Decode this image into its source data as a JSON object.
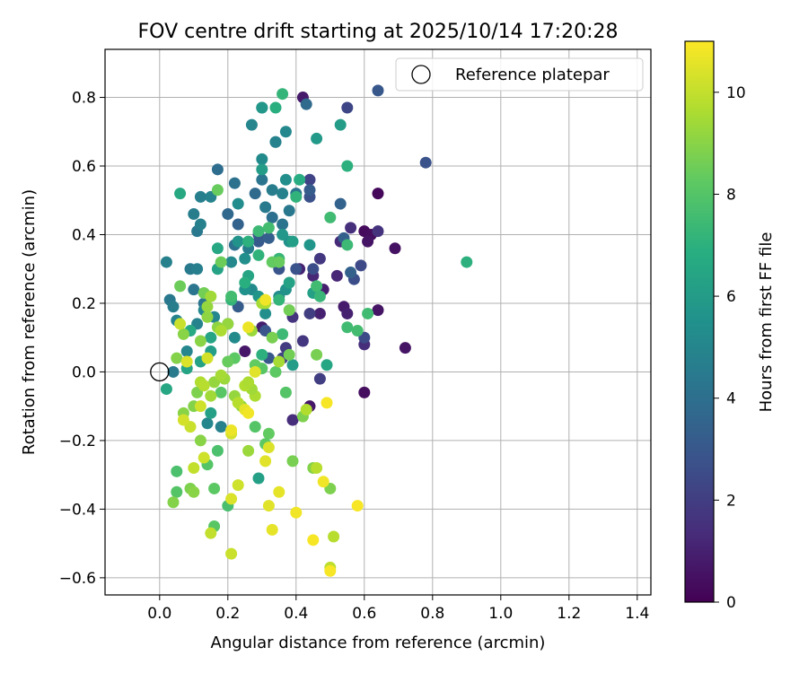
{
  "chart_data": {
    "type": "scatter",
    "title": "FOV centre drift starting at 2025/10/14 17:20:28",
    "xlabel": "Angular distance from reference (arcmin)",
    "ylabel": "Rotation from reference (arcmin)",
    "xlim": [
      -0.16,
      1.44
    ],
    "ylim": [
      -0.65,
      0.94
    ],
    "xticks": [
      0.0,
      0.2,
      0.4,
      0.6,
      0.8,
      1.0,
      1.2,
      1.4
    ],
    "yticks": [
      -0.6,
      -0.4,
      -0.2,
      0.0,
      0.2,
      0.4,
      0.6,
      0.8
    ],
    "xtick_labels": [
      "0.0",
      "0.2",
      "0.4",
      "0.6",
      "0.8",
      "1.0",
      "1.2",
      "1.4"
    ],
    "ytick_labels": [
      "−0.6",
      "−0.4",
      "−0.2",
      "0.0",
      "0.2",
      "0.4",
      "0.6",
      "0.8"
    ],
    "grid": true,
    "legend": {
      "placement": "top-right",
      "entries": [
        "Reference platepar"
      ]
    },
    "reference_point": {
      "x": 0.0,
      "y": 0.0
    },
    "colorbar": {
      "label": "Hours from first FF file",
      "min": 0,
      "max": 11,
      "ticks": [
        0,
        2,
        4,
        6,
        8,
        10
      ],
      "tick_labels": [
        "0",
        "2",
        "4",
        "6",
        "8",
        "10"
      ],
      "colormap": "viridis"
    },
    "points": [
      {
        "x": 0.64,
        "y": 0.52,
        "h": 0.2
      },
      {
        "x": 0.6,
        "y": 0.41,
        "h": 0.3
      },
      {
        "x": 0.62,
        "y": 0.4,
        "h": 0.4
      },
      {
        "x": 0.61,
        "y": 0.38,
        "h": 0.6
      },
      {
        "x": 0.69,
        "y": 0.36,
        "h": 0.5
      },
      {
        "x": 0.72,
        "y": 0.07,
        "h": 0.6
      },
      {
        "x": 0.6,
        "y": -0.06,
        "h": 0.4
      },
      {
        "x": 0.64,
        "y": 0.18,
        "h": 0.6
      },
      {
        "x": 0.54,
        "y": 0.19,
        "h": 0.8
      },
      {
        "x": 0.55,
        "y": 0.17,
        "h": 1.0
      },
      {
        "x": 0.48,
        "y": 0.24,
        "h": 0.9
      },
      {
        "x": 0.42,
        "y": 0.8,
        "h": 0.8
      },
      {
        "x": 0.44,
        "y": -0.1,
        "h": 0.7
      },
      {
        "x": 0.3,
        "y": 0.13,
        "h": 0.9
      },
      {
        "x": 0.25,
        "y": 0.06,
        "h": 0.7
      },
      {
        "x": 0.47,
        "y": 0.17,
        "h": 1.0
      },
      {
        "x": 0.52,
        "y": 0.28,
        "h": 1.2
      },
      {
        "x": 0.53,
        "y": 0.38,
        "h": 1.3
      },
      {
        "x": 0.6,
        "y": 0.08,
        "h": 1.4
      },
      {
        "x": 0.64,
        "y": 0.41,
        "h": 1.6
      },
      {
        "x": 0.56,
        "y": 0.42,
        "h": 1.5
      },
      {
        "x": 0.45,
        "y": 0.28,
        "h": 1.2
      },
      {
        "x": 0.41,
        "y": 0.3,
        "h": 1.1
      },
      {
        "x": 0.47,
        "y": 0.33,
        "h": 1.8
      },
      {
        "x": 0.39,
        "y": -0.14,
        "h": 1.4
      },
      {
        "x": 0.39,
        "y": 0.16,
        "h": 1.6
      },
      {
        "x": 0.44,
        "y": 0.17,
        "h": 2.0
      },
      {
        "x": 0.42,
        "y": 0.09,
        "h": 1.7
      },
      {
        "x": 0.37,
        "y": 0.07,
        "h": 1.9
      },
      {
        "x": 0.36,
        "y": 0.04,
        "h": 2.2
      },
      {
        "x": 0.47,
        "y": -0.02,
        "h": 2.0
      },
      {
        "x": 0.55,
        "y": 0.77,
        "h": 2.3
      },
      {
        "x": 0.78,
        "y": 0.61,
        "h": 2.8
      },
      {
        "x": 0.64,
        "y": 0.82,
        "h": 3.0
      },
      {
        "x": 0.59,
        "y": 0.31,
        "h": 2.4
      },
      {
        "x": 0.57,
        "y": 0.27,
        "h": 2.6
      },
      {
        "x": 0.6,
        "y": 0.1,
        "h": 2.5
      },
      {
        "x": 0.44,
        "y": 0.56,
        "h": 2.2
      },
      {
        "x": 0.44,
        "y": 0.51,
        "h": 2.7
      },
      {
        "x": 0.45,
        "y": 0.3,
        "h": 2.6
      },
      {
        "x": 0.32,
        "y": 0.04,
        "h": 3.0
      },
      {
        "x": 0.31,
        "y": 0.12,
        "h": 2.9
      },
      {
        "x": 0.29,
        "y": 0.4,
        "h": 2.8
      },
      {
        "x": 0.29,
        "y": 0.38,
        "h": 3.1
      },
      {
        "x": 0.23,
        "y": 0.19,
        "h": 3.2
      },
      {
        "x": 0.4,
        "y": 0.3,
        "h": 2.8
      },
      {
        "x": 0.35,
        "y": 0.3,
        "h": 2.9
      },
      {
        "x": 0.32,
        "y": 0.39,
        "h": 3.3
      },
      {
        "x": 0.56,
        "y": 0.29,
        "h": 3.4
      },
      {
        "x": 0.53,
        "y": 0.49,
        "h": 3.5
      },
      {
        "x": 0.54,
        "y": 0.39,
        "h": 3.4
      },
      {
        "x": 0.43,
        "y": 0.78,
        "h": 3.8
      },
      {
        "x": 0.34,
        "y": 0.67,
        "h": 3.6
      },
      {
        "x": 0.44,
        "y": 0.53,
        "h": 3.2
      },
      {
        "x": 0.23,
        "y": 0.43,
        "h": 3.5
      },
      {
        "x": 0.2,
        "y": 0.46,
        "h": 3.7
      },
      {
        "x": 0.17,
        "y": 0.59,
        "h": 3.9
      },
      {
        "x": 0.22,
        "y": 0.55,
        "h": 4.1
      },
      {
        "x": 0.28,
        "y": 0.52,
        "h": 3.8
      },
      {
        "x": 0.33,
        "y": 0.45,
        "h": 4.0
      },
      {
        "x": 0.36,
        "y": 0.43,
        "h": 4.2
      },
      {
        "x": 0.38,
        "y": 0.47,
        "h": 4.4
      },
      {
        "x": 0.31,
        "y": 0.48,
        "h": 4.5
      },
      {
        "x": 0.3,
        "y": 0.56,
        "h": 4.3
      },
      {
        "x": 0.33,
        "y": 0.53,
        "h": 4.6
      },
      {
        "x": 0.36,
        "y": 0.52,
        "h": 4.8
      },
      {
        "x": 0.4,
        "y": 0.52,
        "h": 4.2
      },
      {
        "x": 0.22,
        "y": 0.37,
        "h": 4.1
      },
      {
        "x": 0.26,
        "y": 0.36,
        "h": 4.6
      },
      {
        "x": 0.15,
        "y": 0.51,
        "h": 4.9
      },
      {
        "x": 0.12,
        "y": 0.51,
        "h": 4.7
      },
      {
        "x": 0.1,
        "y": 0.46,
        "h": 4.6
      },
      {
        "x": 0.11,
        "y": 0.41,
        "h": 4.4
      },
      {
        "x": 0.12,
        "y": 0.43,
        "h": 4.8
      },
      {
        "x": 0.13,
        "y": 0.2,
        "h": 4.2
      },
      {
        "x": 0.1,
        "y": 0.24,
        "h": 4.3
      },
      {
        "x": 0.09,
        "y": 0.3,
        "h": 4.5
      },
      {
        "x": 0.11,
        "y": 0.3,
        "h": 4.7
      },
      {
        "x": 0.03,
        "y": 0.21,
        "h": 4.4
      },
      {
        "x": 0.04,
        "y": 0.19,
        "h": 4.6
      },
      {
        "x": 0.04,
        "y": 0.0,
        "h": 4.5
      },
      {
        "x": 0.02,
        "y": 0.32,
        "h": 4.8
      },
      {
        "x": 0.05,
        "y": 0.15,
        "h": 4.9
      },
      {
        "x": 0.08,
        "y": 0.06,
        "h": 5.0
      },
      {
        "x": 0.11,
        "y": 0.14,
        "h": 4.9
      },
      {
        "x": 0.13,
        "y": 0.18,
        "h": 5.1
      },
      {
        "x": 0.16,
        "y": 0.16,
        "h": 5.0
      },
      {
        "x": 0.18,
        "y": -0.16,
        "h": 4.8
      },
      {
        "x": 0.14,
        "y": -0.15,
        "h": 5.0
      },
      {
        "x": 0.3,
        "y": 0.77,
        "h": 5.0
      },
      {
        "x": 0.34,
        "y": 0.67,
        "h": 4.9
      },
      {
        "x": 0.37,
        "y": 0.7,
        "h": 5.1
      },
      {
        "x": 0.27,
        "y": 0.72,
        "h": 5.0
      },
      {
        "x": 0.3,
        "y": 0.62,
        "h": 5.2
      },
      {
        "x": 0.37,
        "y": 0.56,
        "h": 5.4
      },
      {
        "x": 0.23,
        "y": 0.49,
        "h": 5.3
      },
      {
        "x": 0.21,
        "y": 0.32,
        "h": 5.1
      },
      {
        "x": 0.23,
        "y": 0.38,
        "h": 5.6
      },
      {
        "x": 0.25,
        "y": 0.33,
        "h": 5.4
      },
      {
        "x": 0.27,
        "y": 0.24,
        "h": 5.2
      },
      {
        "x": 0.25,
        "y": 0.24,
        "h": 5.5
      },
      {
        "x": 0.35,
        "y": 0.22,
        "h": 5.3
      },
      {
        "x": 0.37,
        "y": 0.24,
        "h": 5.6
      },
      {
        "x": 0.31,
        "y": 0.17,
        "h": 5.4
      },
      {
        "x": 0.29,
        "y": 0.22,
        "h": 5.7
      },
      {
        "x": 0.22,
        "y": 0.1,
        "h": 5.2
      },
      {
        "x": 0.2,
        "y": 0.14,
        "h": 5.5
      },
      {
        "x": 0.38,
        "y": 0.38,
        "h": 5.5
      },
      {
        "x": 0.36,
        "y": 0.4,
        "h": 5.8
      },
      {
        "x": 0.44,
        "y": 0.37,
        "h": 5.7
      },
      {
        "x": 0.46,
        "y": 0.68,
        "h": 5.9
      },
      {
        "x": 0.53,
        "y": 0.72,
        "h": 6.0
      },
      {
        "x": 0.3,
        "y": 0.59,
        "h": 6.0
      },
      {
        "x": 0.3,
        "y": 0.77,
        "h": 5.8
      },
      {
        "x": 0.39,
        "y": 0.38,
        "h": 6.1
      },
      {
        "x": 0.45,
        "y": 0.23,
        "h": 6.2
      },
      {
        "x": 0.38,
        "y": 0.26,
        "h": 6.3
      },
      {
        "x": 0.39,
        "y": 0.02,
        "h": 6.0
      },
      {
        "x": 0.29,
        "y": -0.31,
        "h": 6.2
      },
      {
        "x": 0.26,
        "y": 0.28,
        "h": 6.4
      },
      {
        "x": 0.17,
        "y": 0.36,
        "h": 6.5
      },
      {
        "x": 0.17,
        "y": 0.3,
        "h": 6.3
      },
      {
        "x": 0.15,
        "y": 0.06,
        "h": 6.1
      },
      {
        "x": 0.12,
        "y": 0.03,
        "h": 6.3
      },
      {
        "x": 0.08,
        "y": 0.01,
        "h": 6.4
      },
      {
        "x": 0.06,
        "y": 0.52,
        "h": 6.6
      },
      {
        "x": 0.02,
        "y": -0.05,
        "h": 6.5
      },
      {
        "x": 0.15,
        "y": -0.12,
        "h": 6.2
      },
      {
        "x": 0.15,
        "y": 0.1,
        "h": 6.4
      },
      {
        "x": 0.09,
        "y": 0.12,
        "h": 6.7
      },
      {
        "x": 0.49,
        "y": 0.02,
        "h": 6.5
      },
      {
        "x": 0.41,
        "y": 0.56,
        "h": 6.8
      },
      {
        "x": 0.55,
        "y": 0.6,
        "h": 7.0
      },
      {
        "x": 0.34,
        "y": 0.77,
        "h": 6.9
      },
      {
        "x": 0.36,
        "y": 0.81,
        "h": 7.2
      },
      {
        "x": 0.4,
        "y": 0.51,
        "h": 7.1
      },
      {
        "x": 0.26,
        "y": 0.38,
        "h": 7.0
      },
      {
        "x": 0.25,
        "y": 0.26,
        "h": 6.9
      },
      {
        "x": 0.35,
        "y": 0.33,
        "h": 7.3
      },
      {
        "x": 0.29,
        "y": 0.34,
        "h": 7.1
      },
      {
        "x": 0.35,
        "y": 0.21,
        "h": 7.2
      },
      {
        "x": 0.36,
        "y": 0.11,
        "h": 7.4
      },
      {
        "x": 0.3,
        "y": 0.05,
        "h": 7.0
      },
      {
        "x": 0.21,
        "y": 0.21,
        "h": 7.2
      },
      {
        "x": 0.46,
        "y": 0.25,
        "h": 7.5
      },
      {
        "x": 0.47,
        "y": 0.22,
        "h": 7.3
      },
      {
        "x": 0.55,
        "y": 0.13,
        "h": 7.5
      },
      {
        "x": 0.58,
        "y": 0.12,
        "h": 7.6
      },
      {
        "x": 0.61,
        "y": 0.17,
        "h": 7.5
      },
      {
        "x": 0.9,
        "y": 0.32,
        "h": 7.0
      },
      {
        "x": 0.55,
        "y": 0.37,
        "h": 7.4
      },
      {
        "x": 0.5,
        "y": 0.45,
        "h": 7.5
      },
      {
        "x": 0.32,
        "y": 0.42,
        "h": 7.6
      },
      {
        "x": 0.29,
        "y": 0.41,
        "h": 7.4
      },
      {
        "x": 0.21,
        "y": 0.22,
        "h": 7.6
      },
      {
        "x": 0.2,
        "y": -0.39,
        "h": 7.7
      },
      {
        "x": 0.17,
        "y": -0.23,
        "h": 7.8
      },
      {
        "x": 0.05,
        "y": -0.29,
        "h": 7.8
      },
      {
        "x": 0.05,
        "y": -0.35,
        "h": 8.0
      },
      {
        "x": 0.16,
        "y": -0.45,
        "h": 8.1
      },
      {
        "x": 0.14,
        "y": -0.27,
        "h": 8.0
      },
      {
        "x": 0.16,
        "y": -0.34,
        "h": 8.2
      },
      {
        "x": 0.28,
        "y": -0.16,
        "h": 8.0
      },
      {
        "x": 0.32,
        "y": -0.18,
        "h": 8.3
      },
      {
        "x": 0.31,
        "y": -0.21,
        "h": 8.2
      },
      {
        "x": 0.37,
        "y": -0.06,
        "h": 8.0
      },
      {
        "x": 0.34,
        "y": 0.0,
        "h": 8.2
      },
      {
        "x": 0.3,
        "y": 0.01,
        "h": 8.1
      },
      {
        "x": 0.28,
        "y": 0.02,
        "h": 8.3
      },
      {
        "x": 0.22,
        "y": 0.04,
        "h": 8.2
      },
      {
        "x": 0.18,
        "y": -0.06,
        "h": 8.1
      },
      {
        "x": 0.2,
        "y": 0.03,
        "h": 8.4
      },
      {
        "x": 0.17,
        "y": 0.53,
        "h": 8.4
      },
      {
        "x": 0.18,
        "y": 0.32,
        "h": 8.5
      },
      {
        "x": 0.33,
        "y": 0.32,
        "h": 8.3
      },
      {
        "x": 0.35,
        "y": 0.32,
        "h": 8.4
      },
      {
        "x": 0.06,
        "y": 0.25,
        "h": 8.5
      },
      {
        "x": 0.13,
        "y": 0.23,
        "h": 8.6
      },
      {
        "x": 0.38,
        "y": 0.18,
        "h": 8.6
      },
      {
        "x": 0.33,
        "y": 0.1,
        "h": 8.7
      },
      {
        "x": 0.38,
        "y": 0.05,
        "h": 8.6
      },
      {
        "x": 0.39,
        "y": -0.26,
        "h": 8.7
      },
      {
        "x": 0.42,
        "y": -0.13,
        "h": 8.8
      },
      {
        "x": 0.45,
        "y": -0.28,
        "h": 8.9
      },
      {
        "x": 0.5,
        "y": -0.34,
        "h": 8.8
      },
      {
        "x": 0.46,
        "y": 0.05,
        "h": 8.7
      },
      {
        "x": 0.04,
        "y": -0.38,
        "h": 8.9
      },
      {
        "x": 0.09,
        "y": -0.34,
        "h": 8.8
      },
      {
        "x": 0.1,
        "y": -0.35,
        "h": 9.0
      },
      {
        "x": 0.1,
        "y": -0.1,
        "h": 8.9
      },
      {
        "x": 0.11,
        "y": -0.06,
        "h": 8.8
      },
      {
        "x": 0.12,
        "y": -0.2,
        "h": 9.0
      },
      {
        "x": 0.07,
        "y": -0.12,
        "h": 9.0
      },
      {
        "x": 0.05,
        "y": 0.04,
        "h": 8.9
      },
      {
        "x": 0.07,
        "y": 0.11,
        "h": 9.0
      },
      {
        "x": 0.12,
        "y": 0.09,
        "h": 9.0
      },
      {
        "x": 0.14,
        "y": 0.16,
        "h": 9.1
      },
      {
        "x": 0.14,
        "y": 0.19,
        "h": 9.2
      },
      {
        "x": 0.17,
        "y": 0.13,
        "h": 9.1
      },
      {
        "x": 0.2,
        "y": 0.14,
        "h": 9.2
      },
      {
        "x": 0.19,
        "y": -0.02,
        "h": 9.3
      },
      {
        "x": 0.22,
        "y": -0.07,
        "h": 9.2
      },
      {
        "x": 0.24,
        "y": -0.1,
        "h": 9.1
      },
      {
        "x": 0.26,
        "y": -0.23,
        "h": 9.3
      },
      {
        "x": 0.15,
        "y": -0.07,
        "h": 9.4
      },
      {
        "x": 0.16,
        "y": -0.03,
        "h": 9.2
      },
      {
        "x": 0.18,
        "y": -0.01,
        "h": 9.5
      },
      {
        "x": 0.15,
        "y": 0.22,
        "h": 9.4
      },
      {
        "x": 0.27,
        "y": 0.12,
        "h": 9.3
      },
      {
        "x": 0.3,
        "y": 0.2,
        "h": 9.5
      },
      {
        "x": 0.31,
        "y": 0.2,
        "h": 9.6
      },
      {
        "x": 0.35,
        "y": 0.03,
        "h": 9.5
      },
      {
        "x": 0.28,
        "y": -0.07,
        "h": 9.6
      },
      {
        "x": 0.27,
        "y": -0.05,
        "h": 9.4
      },
      {
        "x": 0.18,
        "y": 0.12,
        "h": 9.6
      },
      {
        "x": 0.12,
        "y": -0.03,
        "h": 9.7
      },
      {
        "x": 0.13,
        "y": -0.04,
        "h": 9.8
      },
      {
        "x": 0.25,
        "y": -0.04,
        "h": 9.7
      },
      {
        "x": 0.23,
        "y": -0.09,
        "h": 9.8
      },
      {
        "x": 0.26,
        "y": -0.03,
        "h": 9.6
      },
      {
        "x": 0.46,
        "y": -0.28,
        "h": 9.8
      },
      {
        "x": 0.51,
        "y": -0.48,
        "h": 9.8
      },
      {
        "x": 0.5,
        "y": -0.57,
        "h": 9.9
      },
      {
        "x": 0.43,
        "y": -0.11,
        "h": 9.7
      },
      {
        "x": 0.15,
        "y": -0.47,
        "h": 10.0
      },
      {
        "x": 0.21,
        "y": -0.53,
        "h": 10.1
      },
      {
        "x": 0.13,
        "y": -0.25,
        "h": 10.2
      },
      {
        "x": 0.1,
        "y": -0.28,
        "h": 10.0
      },
      {
        "x": 0.09,
        "y": -0.16,
        "h": 10.1
      },
      {
        "x": 0.07,
        "y": -0.14,
        "h": 10.3
      },
      {
        "x": 0.06,
        "y": 0.14,
        "h": 10.1
      },
      {
        "x": 0.08,
        "y": 0.03,
        "h": 10.4
      },
      {
        "x": 0.12,
        "y": -0.1,
        "h": 10.2
      },
      {
        "x": 0.14,
        "y": 0.04,
        "h": 10.3
      },
      {
        "x": 0.21,
        "y": -0.18,
        "h": 10.3
      },
      {
        "x": 0.23,
        "y": -0.33,
        "h": 10.2
      },
      {
        "x": 0.21,
        "y": -0.37,
        "h": 10.4
      },
      {
        "x": 0.31,
        "y": -0.26,
        "h": 10.5
      },
      {
        "x": 0.32,
        "y": -0.22,
        "h": 10.4
      },
      {
        "x": 0.33,
        "y": -0.46,
        "h": 10.6
      },
      {
        "x": 0.32,
        "y": -0.39,
        "h": 10.5
      },
      {
        "x": 0.35,
        "y": -0.35,
        "h": 10.6
      },
      {
        "x": 0.28,
        "y": 0.0,
        "h": 10.5
      },
      {
        "x": 0.26,
        "y": 0.13,
        "h": 10.7
      },
      {
        "x": 0.25,
        "y": -0.11,
        "h": 10.6
      },
      {
        "x": 0.26,
        "y": -0.12,
        "h": 10.8
      },
      {
        "x": 0.21,
        "y": -0.17,
        "h": 10.7
      },
      {
        "x": 0.4,
        "y": -0.41,
        "h": 10.8
      },
      {
        "x": 0.45,
        "y": -0.49,
        "h": 10.9
      },
      {
        "x": 0.48,
        "y": -0.32,
        "h": 10.8
      },
      {
        "x": 0.49,
        "y": -0.09,
        "h": 10.9
      },
      {
        "x": 0.5,
        "y": -0.58,
        "h": 10.9
      },
      {
        "x": 0.58,
        "y": -0.39,
        "h": 10.9
      },
      {
        "x": 0.31,
        "y": 0.21,
        "h": 10.8
      }
    ]
  }
}
